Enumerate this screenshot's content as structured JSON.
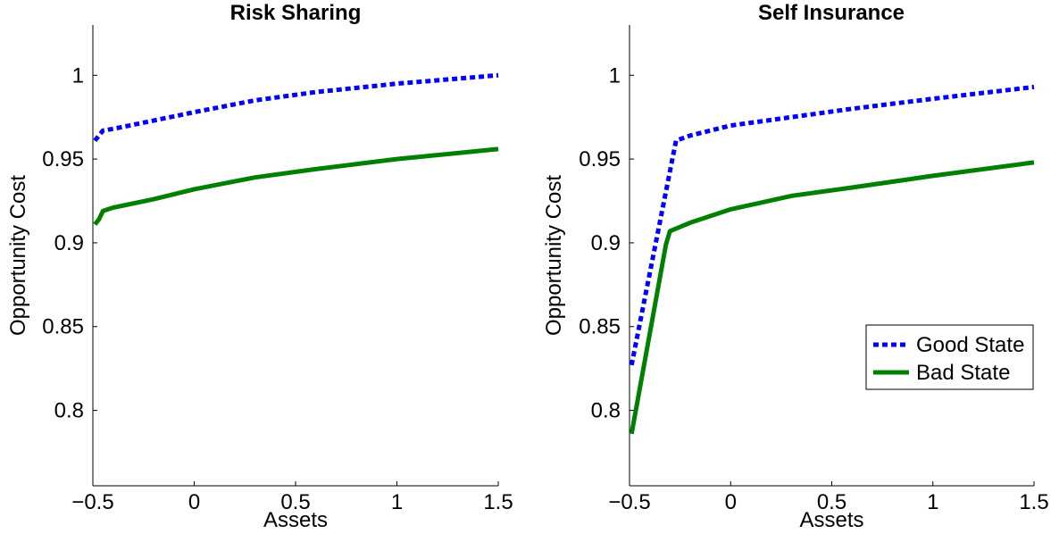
{
  "colors": {
    "good_state": "#0000ff",
    "bad_state": "#008000",
    "axis": "#000000",
    "background": "#ffffff"
  },
  "chart_data": [
    {
      "type": "line",
      "title": "Risk Sharing",
      "xlabel": "Assets",
      "ylabel": "Opportunity Cost",
      "xlim": [
        -0.5,
        1.5
      ],
      "ylim": [
        0.755,
        1.03
      ],
      "xticks": [
        -0.5,
        0,
        0.5,
        1,
        1.5
      ],
      "xtick_labels": [
        "−0.5",
        "0",
        "0.5",
        "1",
        "1.5"
      ],
      "yticks": [
        0.8,
        0.85,
        0.9,
        0.95,
        1
      ],
      "ytick_labels": [
        "0.8",
        "0.85",
        "0.9",
        "0.95",
        "1"
      ],
      "legend": null,
      "series": [
        {
          "name": "Good State",
          "style": "dotted",
          "x": [
            -0.49,
            -0.47,
            -0.45,
            -0.4,
            -0.2,
            0,
            0.3,
            0.6,
            1.0,
            1.5
          ],
          "y": [
            0.961,
            0.964,
            0.967,
            0.968,
            0.973,
            0.978,
            0.985,
            0.99,
            0.995,
            1.0
          ]
        },
        {
          "name": "Bad State",
          "style": "solid",
          "x": [
            -0.49,
            -0.47,
            -0.45,
            -0.4,
            -0.2,
            0,
            0.3,
            0.6,
            1.0,
            1.5
          ],
          "y": [
            0.911,
            0.914,
            0.919,
            0.921,
            0.926,
            0.932,
            0.939,
            0.944,
            0.95,
            0.956
          ]
        }
      ]
    },
    {
      "type": "line",
      "title": "Self Insurance",
      "xlabel": "Assets",
      "ylabel": "Opportunity Cost",
      "xlim": [
        -0.5,
        1.5
      ],
      "ylim": [
        0.755,
        1.03
      ],
      "xticks": [
        -0.5,
        0,
        0.5,
        1,
        1.5
      ],
      "xtick_labels": [
        "−0.5",
        "0",
        "0.5",
        "1",
        "1.5"
      ],
      "yticks": [
        0.8,
        0.85,
        0.9,
        0.95,
        1
      ],
      "ytick_labels": [
        "0.8",
        "0.85",
        "0.9",
        "0.95",
        "1"
      ],
      "legend": "right",
      "legend_entries": [
        "Good State",
        "Bad State"
      ],
      "series": [
        {
          "name": "Good State",
          "style": "dotted",
          "x": [
            -0.49,
            -0.27,
            -0.2,
            0,
            0.3,
            0.6,
            1.0,
            1.5
          ],
          "y": [
            0.827,
            0.961,
            0.964,
            0.97,
            0.975,
            0.98,
            0.986,
            0.993
          ]
        },
        {
          "name": "Bad State",
          "style": "solid",
          "x": [
            -0.49,
            -0.32,
            -0.3,
            -0.2,
            0,
            0.3,
            0.6,
            1.0,
            1.5
          ],
          "y": [
            0.786,
            0.899,
            0.907,
            0.912,
            0.92,
            0.928,
            0.933,
            0.94,
            0.948
          ]
        }
      ]
    }
  ]
}
